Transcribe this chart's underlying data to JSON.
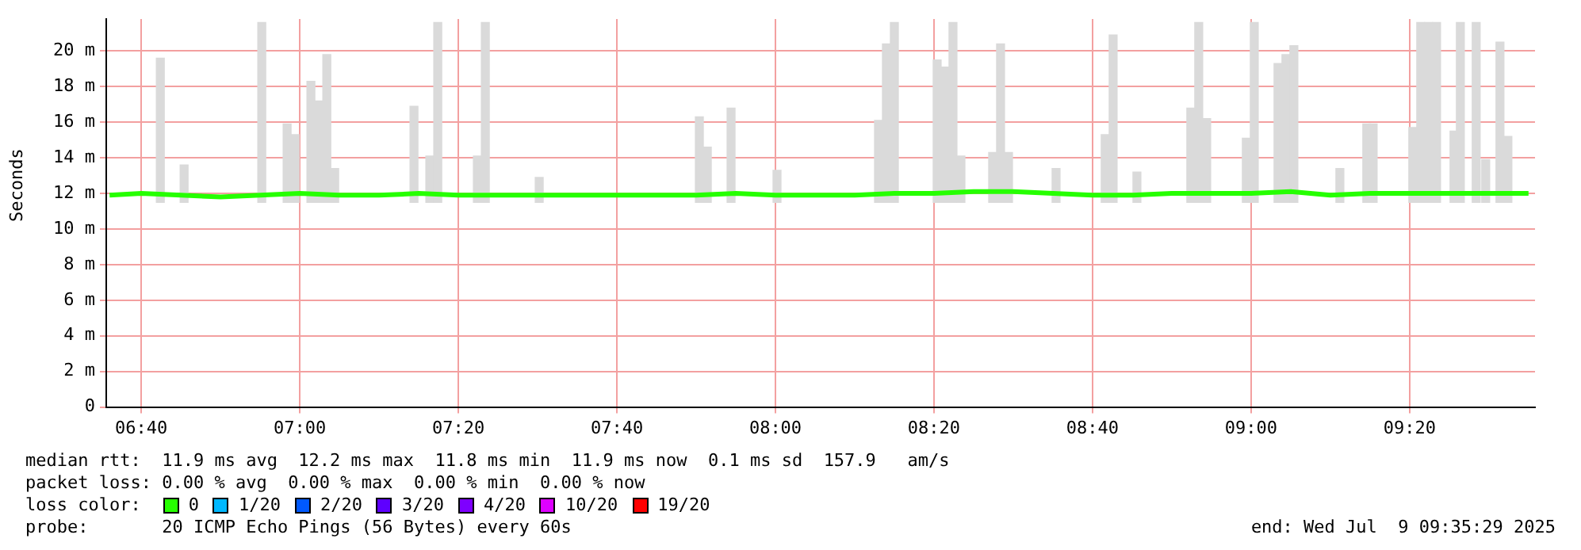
{
  "chart_data": {
    "type": "line",
    "ylabel": "Seconds",
    "legend_title": "loss color:",
    "legend": "bottom",
    "grid": true,
    "marker": "none",
    "line_style": "solid",
    "xlim": [
      6.593,
      9.597
    ],
    "ylim": [
      0,
      21.8
    ],
    "xticks": [
      {
        "value": 6.6667,
        "label": "06:40"
      },
      {
        "value": 7,
        "label": "07:00"
      },
      {
        "value": 7.3333,
        "label": "07:20"
      },
      {
        "value": 7.6667,
        "label": "07:40"
      },
      {
        "value": 8,
        "label": "08:00"
      },
      {
        "value": 8.3333,
        "label": "08:20"
      },
      {
        "value": 8.6667,
        "label": "08:40"
      },
      {
        "value": 9,
        "label": "09:00"
      },
      {
        "value": 9.3333,
        "label": "09:20"
      }
    ],
    "yticks": [
      0,
      {
        "value": 2,
        "label": "2 m"
      },
      {
        "value": 4,
        "label": "4 m"
      },
      {
        "value": 6,
        "label": "6 m"
      },
      {
        "value": 8,
        "label": "8 m"
      },
      {
        "value": 10,
        "label": "10 m"
      },
      {
        "value": 12,
        "label": "12 m"
      },
      {
        "value": 14,
        "label": "14 m"
      },
      {
        "value": 16,
        "label": "16 m"
      },
      {
        "value": 18,
        "label": "18 m"
      },
      {
        "value": 20,
        "label": "20 m"
      }
    ],
    "series": [
      {
        "type": "bar",
        "color": "#dadada",
        "x": [
          6.7067,
          6.7567,
          6.92,
          6.9733,
          6.99,
          7.0233,
          7.04,
          7.0567,
          7.0733,
          7.24,
          7.2733,
          7.29,
          7.3733,
          7.39,
          7.5033,
          7.84,
          7.8567,
          7.9067,
          8.0033,
          8.2167,
          8.2333,
          8.25,
          8.34,
          8.3567,
          8.3733,
          8.39,
          8.4567,
          8.4733,
          8.49,
          8.59,
          8.6933,
          8.71,
          8.76,
          8.8733,
          8.89,
          8.9067,
          8.99,
          9.0067,
          9.0567,
          9.0733,
          9.09,
          9.1867,
          9.2433,
          9.2567,
          9.34,
          9.3567,
          9.3733,
          9.39,
          9.4267,
          9.44,
          9.4733,
          9.4933,
          9.5233,
          9.54
        ],
        "base": [
          11.5,
          11.5,
          11.5,
          11.5,
          11.5,
          11.5,
          11.5,
          11.5,
          11.5,
          11.5,
          11.5,
          11.5,
          11.5,
          11.5,
          11.5,
          11.5,
          11.5,
          11.5,
          11.5,
          11.5,
          11.5,
          11.5,
          11.5,
          11.5,
          11.5,
          11.5,
          11.5,
          11.5,
          11.5,
          11.5,
          11.5,
          11.5,
          11.5,
          11.5,
          11.5,
          11.5,
          11.5,
          11.5,
          11.5,
          11.5,
          11.5,
          11.5,
          11.5,
          11.5,
          11.5,
          11.5,
          11.5,
          11.5,
          11.5,
          11.5,
          11.5,
          11.5,
          11.5,
          11.5
        ],
        "values": [
          8.1,
          2.1,
          10.1,
          4.4,
          3.8,
          6.8,
          5.7,
          8.3,
          1.9,
          5.4,
          2.6,
          10.1,
          2.6,
          10.1,
          1.4,
          4.8,
          3.1,
          5.3,
          1.8,
          4.6,
          8.9,
          10.1,
          8.0,
          7.6,
          10.1,
          2.6,
          2.8,
          8.9,
          2.8,
          1.9,
          3.8,
          9.4,
          1.7,
          5.3,
          10.1,
          4.7,
          3.6,
          10.1,
          7.8,
          8.3,
          8.8,
          1.9,
          4.4,
          4.4,
          4.2,
          10.1,
          10.1,
          10.1,
          4.0,
          10.1,
          10.1,
          2.4,
          9.0,
          3.7
        ]
      },
      {
        "name": "0",
        "color": "#26ff00",
        "x": [
          6.6,
          6.6667,
          6.75,
          6.8333,
          6.9167,
          7.0,
          7.0833,
          7.1667,
          7.25,
          7.3333,
          7.4167,
          7.5,
          7.5833,
          7.6667,
          7.75,
          7.8333,
          7.9167,
          8.0,
          8.0833,
          8.1667,
          8.25,
          8.3333,
          8.4167,
          8.5,
          8.5833,
          8.6667,
          8.75,
          8.8333,
          8.9167,
          9.0,
          9.0833,
          9.1667,
          9.25,
          9.3333,
          9.4167,
          9.5,
          9.5833
        ],
        "values": [
          11.9,
          12,
          11.9,
          11.8,
          11.9,
          12,
          11.9,
          11.9,
          12,
          11.9,
          11.9,
          11.9,
          11.9,
          11.9,
          11.9,
          11.9,
          12,
          11.9,
          11.9,
          11.9,
          12,
          12,
          12.1,
          12.1,
          12,
          11.9,
          11.9,
          12,
          12,
          12,
          12.1,
          11.9,
          12,
          12,
          12,
          12,
          12
        ]
      },
      {
        "name": "1/20",
        "color": "#00b8ff"
      },
      {
        "name": "2/20",
        "color": "#0059ff"
      },
      {
        "name": "3/20",
        "color": "#5e00ff"
      },
      {
        "name": "4/20",
        "color": "#7e00ff"
      },
      {
        "name": "10/20",
        "color": "#dd00ff"
      },
      {
        "name": "19/20",
        "color": "#ff0000"
      }
    ],
    "annotations": [
      "median rtt:  11.9 ms avg  12.2 ms max  11.8 ms min  11.9 ms now  0.1 ms sd  157.9   am/s",
      "packet loss: 0.00 % avg  0.00 % max  0.00 % min  0.00 % now",
      "probe:       20 ICMP Echo Pings (56 Bytes) every 60s",
      "end: Wed Jul  9 09:35:29 2025"
    ]
  }
}
